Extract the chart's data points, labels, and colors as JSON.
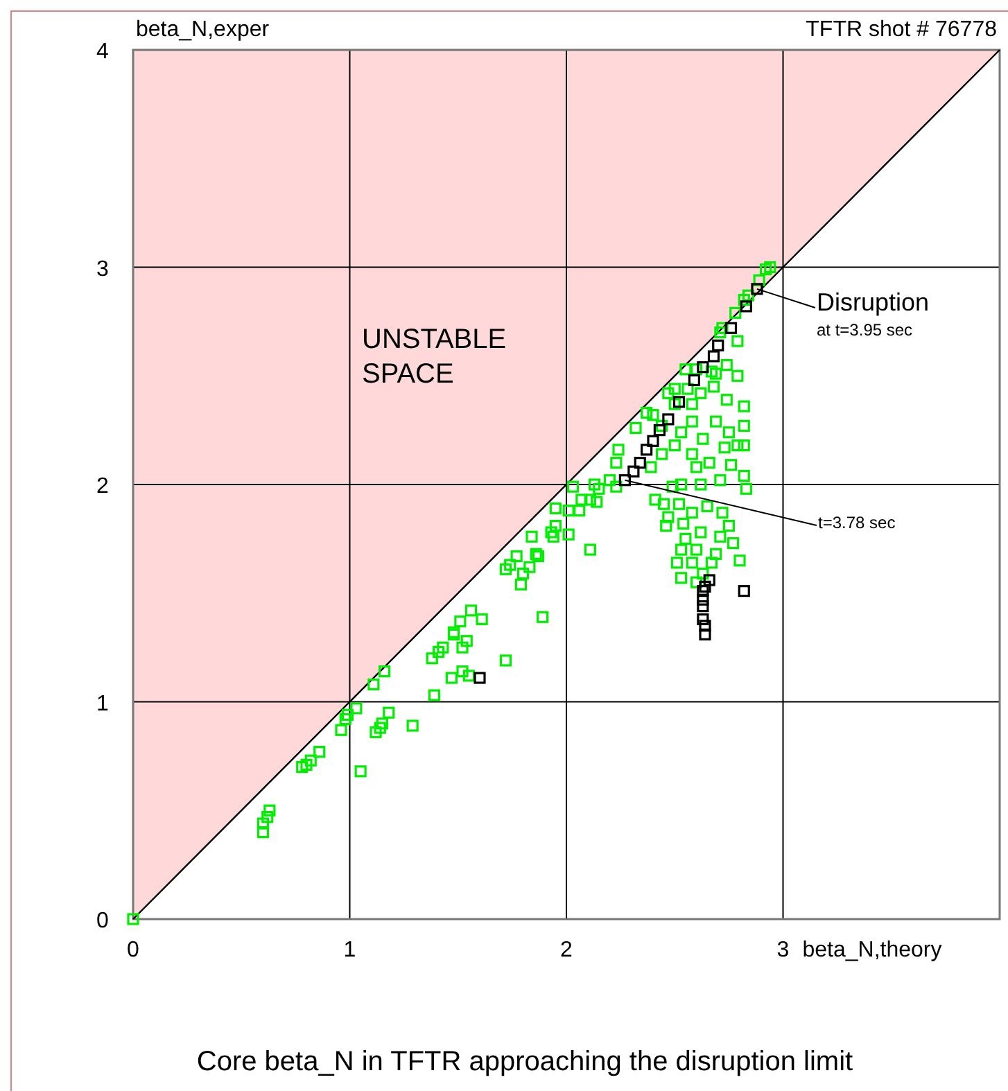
{
  "chart_data": {
    "type": "scatter",
    "title": "Core beta_N in TFTR approaching the disruption limit",
    "subtitle": "TFTR shot # 76778",
    "xlabel": "beta_N,theory",
    "ylabel": "beta_N,exper",
    "xlim": [
      0,
      4
    ],
    "ylim": [
      0,
      4
    ],
    "xticks": [
      0,
      1,
      2,
      3
    ],
    "yticks": [
      0,
      1,
      2,
      3,
      4
    ],
    "grid": true,
    "marker": "square",
    "annotations": [
      "UNSTABLE SPACE",
      {
        "text": "Disruption",
        "x": 2.88,
        "y": 2.9
      },
      "at t=3.95 sec",
      {
        "text": "t=3.78 sec",
        "x": 2.27,
        "y": 2.02
      }
    ],
    "series": [
      {
        "type": "line",
        "marker": "none",
        "color": "#000000",
        "x": [
          0,
          4
        ],
        "values": [
          0,
          4
        ]
      },
      {
        "color": "#00ee00",
        "x": [
          0,
          0.6,
          0.6,
          0.62,
          0.63,
          0.78,
          0.8,
          0.82,
          0.86,
          0.96,
          0.98,
          0.99,
          1.03,
          1.05,
          1.11,
          1.16,
          1.12,
          1.14,
          1.15,
          1.18,
          1.29,
          1.39,
          1.47,
          1.52,
          1.55,
          1.72,
          1.38,
          1.41,
          1.43,
          1.48,
          1.48,
          1.51,
          1.54,
          1.52,
          1.56,
          1.61,
          1.89,
          1.72,
          1.74,
          1.77,
          1.8,
          1.79,
          1.83,
          1.86,
          1.87,
          1.84,
          1.93,
          1.94,
          1.95,
          2.01,
          1.95,
          2.01,
          2.06,
          2.07,
          2.03,
          2.11,
          2.94,
          2.92,
          2.89,
          2.84,
          2.82,
          2.78,
          2.79,
          2.72,
          2.71,
          2.74,
          2.79,
          2.69,
          2.67,
          2.6,
          2.55,
          2.68,
          2.62,
          2.56,
          2.5,
          2.47,
          2.5,
          2.58,
          2.74,
          2.82,
          2.69,
          2.58,
          2.4,
          2.37,
          2.44,
          2.53,
          2.63,
          2.75,
          2.82,
          2.79,
          2.32,
          2.24,
          2.23,
          2.2,
          2.15,
          2.11,
          2.13,
          2.23,
          2.39,
          2.44,
          2.5,
          2.58,
          2.6,
          2.66,
          2.73,
          2.82,
          2.76,
          2.82,
          2.83,
          2.71,
          2.62,
          2.53,
          2.49,
          2.41,
          2.45,
          2.52,
          2.58,
          2.65,
          2.72,
          2.75,
          2.47,
          2.46,
          2.54,
          2.62,
          2.71,
          2.55,
          2.53,
          2.6,
          2.69,
          2.51,
          2.58,
          2.67,
          2.53,
          2.6,
          2.63,
          2.77,
          2.8,
          2.14
        ],
        "values": [
          0,
          0.4,
          0.44,
          0.47,
          0.5,
          0.7,
          0.71,
          0.73,
          0.77,
          0.87,
          0.92,
          0.94,
          0.97,
          0.68,
          1.08,
          1.14,
          0.86,
          0.88,
          0.9,
          0.95,
          0.89,
          1.03,
          1.11,
          1.14,
          1.12,
          1.19,
          1.2,
          1.23,
          1.25,
          1.31,
          1.32,
          1.37,
          1.28,
          1.25,
          1.42,
          1.38,
          1.39,
          1.61,
          1.63,
          1.67,
          1.59,
          1.54,
          1.62,
          1.68,
          1.67,
          1.76,
          1.78,
          1.76,
          1.81,
          1.77,
          1.89,
          1.88,
          1.88,
          1.93,
          1.99,
          1.7,
          3,
          2.99,
          2.94,
          2.87,
          2.85,
          2.79,
          2.66,
          2.72,
          2.7,
          2.55,
          2.5,
          2.51,
          2.52,
          2.53,
          2.53,
          2.45,
          2.42,
          2.44,
          2.44,
          2.42,
          2.37,
          2.37,
          2.39,
          2.36,
          2.29,
          2.29,
          2.32,
          2.33,
          2.27,
          2.24,
          2.21,
          2.24,
          2.27,
          2.18,
          2.26,
          2.16,
          2.1,
          2.02,
          1.98,
          1.93,
          2,
          1.99,
          2.08,
          2.14,
          2.18,
          2.14,
          2.08,
          2.1,
          2.17,
          2.18,
          2.09,
          2.04,
          1.98,
          2.02,
          2,
          2,
          1.99,
          1.93,
          1.91,
          1.91,
          1.87,
          1.9,
          1.87,
          1.81,
          1.85,
          1.81,
          1.82,
          1.78,
          1.76,
          1.75,
          1.7,
          1.7,
          1.68,
          1.64,
          1.64,
          1.64,
          1.57,
          1.55,
          1.59,
          1.73,
          1.65,
          1.92
        ]
      },
      {
        "color": "#000000",
        "x": [
          2.27,
          2.31,
          2.34,
          2.37,
          2.4,
          2.43,
          2.47,
          2.52,
          2.59,
          2.63,
          2.68,
          2.7,
          2.76,
          2.83,
          2.88,
          2.66,
          2.64,
          2.63,
          2.63,
          2.63,
          2.63,
          2.64,
          2.64,
          2.82,
          1.6
        ],
        "values": [
          2.02,
          2.06,
          2.1,
          2.16,
          2.2,
          2.25,
          2.3,
          2.38,
          2.48,
          2.54,
          2.59,
          2.64,
          2.72,
          2.82,
          2.9,
          1.56,
          1.53,
          1.51,
          1.47,
          1.44,
          1.38,
          1.35,
          1.31,
          1.51,
          1.11
        ]
      }
    ]
  }
}
